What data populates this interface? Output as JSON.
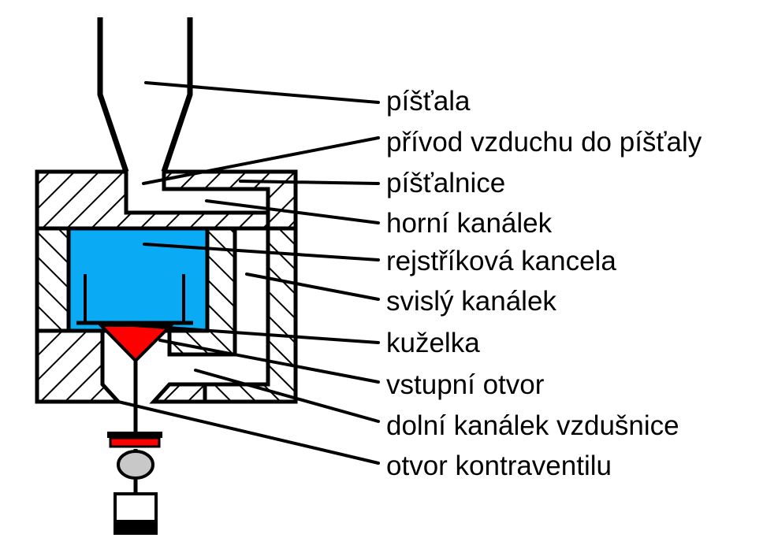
{
  "diagram": {
    "labels": [
      "píšťala",
      "přívod vzduchu do píšťaly",
      "píšťalnice",
      "horní kanálek",
      "rejstříková kancela",
      "svislý kanálek",
      "kuželka",
      "vstupní otvor",
      "dolní kanálek vzdušnice",
      "otvor kontraventilu"
    ]
  },
  "colors": {
    "outline": "#000000",
    "kancela_fill": "#0BAAF5",
    "kuzelka_fill": "#FF0000",
    "ball_fill": "#C8C8C8",
    "background": "#FFFFFF"
  }
}
